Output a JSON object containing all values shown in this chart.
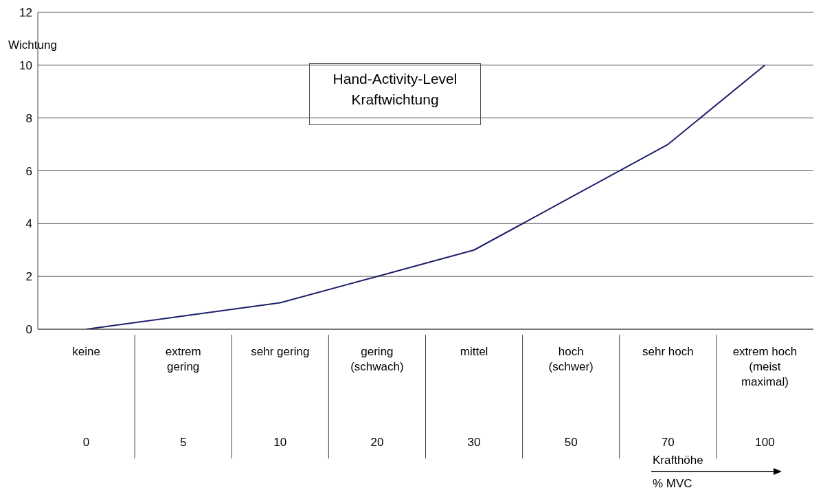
{
  "chart_data": {
    "type": "line",
    "title": "Hand-Activity-Level Kraftwichtung",
    "ylabel": "Wichtung",
    "annotations": [
      "0",
      "5",
      "10",
      "20",
      "30",
      "50",
      "70",
      "100",
      "Krafthöhe",
      "% MVC"
    ],
    "categories": [
      "keine",
      "extrem gering",
      "sehr gering",
      "gering (schwach)",
      "mittel",
      "hoch (schwer)",
      "sehr hoch",
      "extrem hoch (meist maximal)"
    ],
    "values": [
      0,
      0.5,
      1,
      2,
      3,
      5,
      7,
      10
    ],
    "color": "#1f1f6e",
    "ylim": [
      0,
      12
    ],
    "yticks": [
      0,
      2,
      4,
      6,
      8,
      10,
      12
    ],
    "grid": "y",
    "marker": "none",
    "line_style": "solid"
  }
}
